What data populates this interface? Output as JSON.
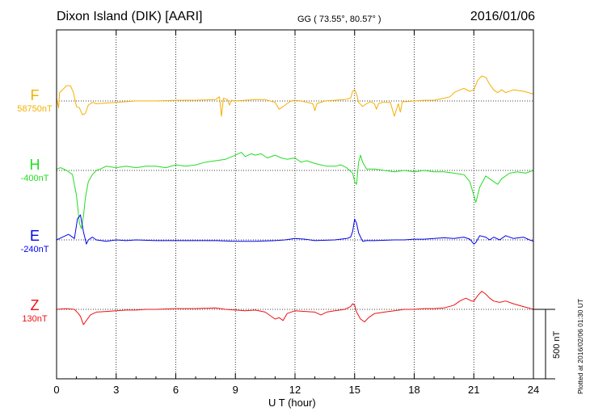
{
  "header": {
    "station": "Dixon Island (DIK)  [AARI]",
    "coords": "GG ( 73.55°,  80.57° )",
    "date": "2016/01/06"
  },
  "components": [
    {
      "letter": "F",
      "baseline": "58750nT",
      "color": "#f5b000"
    },
    {
      "letter": "H",
      "baseline": "-400nT",
      "color": "#22dd22"
    },
    {
      "letter": "E",
      "baseline": "-240nT",
      "color": "#0000ee"
    },
    {
      "letter": "Z",
      "baseline": "130nT",
      "color": "#ee1111"
    }
  ],
  "scale_bar": {
    "label": "500 nT",
    "value_nT": 500
  },
  "footer": {
    "plotted": "Plotted at 2016/02/06 01:30 UT"
  },
  "chart_data": {
    "type": "line",
    "title": "Dixon Island (DIK)  [AARI]",
    "xlabel": "U T (hour)",
    "ylabel": "",
    "xlim": [
      0,
      24
    ],
    "x_ticks": [
      0,
      3,
      6,
      9,
      12,
      15,
      18,
      21,
      24
    ],
    "grid": true,
    "units": "nT",
    "series": [
      {
        "name": "F",
        "baseline": 58750,
        "color": "#f5b000",
        "points": [
          [
            0,
            20
          ],
          [
            0.1,
            -50
          ],
          [
            0.15,
            60
          ],
          [
            0.3,
            80
          ],
          [
            0.5,
            110
          ],
          [
            0.7,
            110
          ],
          [
            0.85,
            60
          ],
          [
            1.0,
            -40
          ],
          [
            1.15,
            -50
          ],
          [
            1.3,
            -100
          ],
          [
            1.45,
            -90
          ],
          [
            1.6,
            -30
          ],
          [
            1.8,
            -10
          ],
          [
            2.0,
            -20
          ],
          [
            2.5,
            -15
          ],
          [
            3.0,
            -10
          ],
          [
            3.5,
            -5
          ],
          [
            4.0,
            0
          ],
          [
            5.0,
            0
          ],
          [
            6.0,
            5
          ],
          [
            7.0,
            5
          ],
          [
            8.0,
            10
          ],
          [
            8.2,
            30
          ],
          [
            8.3,
            -110
          ],
          [
            8.4,
            20
          ],
          [
            8.6,
            10
          ],
          [
            8.7,
            -30
          ],
          [
            8.8,
            5
          ],
          [
            9.0,
            0
          ],
          [
            9.5,
            5
          ],
          [
            10.0,
            10
          ],
          [
            10.5,
            10
          ],
          [
            11.0,
            -10
          ],
          [
            11.2,
            -60
          ],
          [
            11.4,
            -40
          ],
          [
            11.6,
            -20
          ],
          [
            11.8,
            0
          ],
          [
            12.0,
            5
          ],
          [
            12.3,
            0
          ],
          [
            12.6,
            -10
          ],
          [
            12.9,
            -20
          ],
          [
            13.0,
            -70
          ],
          [
            13.1,
            -20
          ],
          [
            13.5,
            0
          ],
          [
            14.0,
            5
          ],
          [
            14.5,
            10
          ],
          [
            14.8,
            20
          ],
          [
            14.9,
            70
          ],
          [
            15.0,
            80
          ],
          [
            15.1,
            50
          ],
          [
            15.2,
            -10
          ],
          [
            15.4,
            -40
          ],
          [
            15.6,
            -20
          ],
          [
            15.8,
            -5
          ],
          [
            16.0,
            -20
          ],
          [
            16.1,
            -60
          ],
          [
            16.2,
            -20
          ],
          [
            16.4,
            -10
          ],
          [
            16.8,
            -10
          ],
          [
            17.0,
            -110
          ],
          [
            17.2,
            -20
          ],
          [
            17.3,
            -80
          ],
          [
            17.4,
            -5
          ],
          [
            17.6,
            -5
          ],
          [
            18.0,
            0
          ],
          [
            18.5,
            5
          ],
          [
            19.0,
            5
          ],
          [
            19.5,
            20
          ],
          [
            19.8,
            30
          ],
          [
            20.0,
            60
          ],
          [
            20.3,
            80
          ],
          [
            20.5,
            90
          ],
          [
            20.8,
            70
          ],
          [
            21.0,
            80
          ],
          [
            21.2,
            150
          ],
          [
            21.4,
            180
          ],
          [
            21.6,
            170
          ],
          [
            21.8,
            120
          ],
          [
            22.0,
            80
          ],
          [
            22.2,
            60
          ],
          [
            22.4,
            80
          ],
          [
            22.6,
            60
          ],
          [
            23.0,
            80
          ],
          [
            23.5,
            70
          ],
          [
            24.0,
            50
          ]
        ]
      },
      {
        "name": "H",
        "baseline": -400,
        "color": "#22dd22",
        "points": [
          [
            0,
            10
          ],
          [
            0.2,
            20
          ],
          [
            0.5,
            0
          ],
          [
            0.8,
            -30
          ],
          [
            1.0,
            -180
          ],
          [
            1.15,
            -380
          ],
          [
            1.25,
            -420
          ],
          [
            1.35,
            -330
          ],
          [
            1.45,
            -200
          ],
          [
            1.6,
            -80
          ],
          [
            1.8,
            -30
          ],
          [
            2.0,
            0
          ],
          [
            2.2,
            10
          ],
          [
            2.5,
            30
          ],
          [
            3.0,
            20
          ],
          [
            3.5,
            30
          ],
          [
            4.0,
            20
          ],
          [
            4.5,
            30
          ],
          [
            5.0,
            30
          ],
          [
            5.5,
            20
          ],
          [
            6.0,
            40
          ],
          [
            6.5,
            30
          ],
          [
            7.0,
            40
          ],
          [
            7.5,
            60
          ],
          [
            8.0,
            70
          ],
          [
            8.5,
            80
          ],
          [
            9.0,
            110
          ],
          [
            9.3,
            130
          ],
          [
            9.5,
            100
          ],
          [
            9.8,
            120
          ],
          [
            10.0,
            110
          ],
          [
            10.3,
            120
          ],
          [
            10.6,
            90
          ],
          [
            11.0,
            110
          ],
          [
            11.3,
            90
          ],
          [
            11.6,
            80
          ],
          [
            12.0,
            90
          ],
          [
            12.3,
            60
          ],
          [
            12.6,
            70
          ],
          [
            13.0,
            50
          ],
          [
            13.3,
            40
          ],
          [
            13.6,
            30
          ],
          [
            14.0,
            30
          ],
          [
            14.3,
            40
          ],
          [
            14.6,
            20
          ],
          [
            14.9,
            -20
          ],
          [
            15.0,
            -80
          ],
          [
            15.1,
            -100
          ],
          [
            15.2,
            60
          ],
          [
            15.3,
            110
          ],
          [
            15.4,
            60
          ],
          [
            15.6,
            10
          ],
          [
            16.0,
            10
          ],
          [
            16.5,
            0
          ],
          [
            17.0,
            -10
          ],
          [
            17.5,
            0
          ],
          [
            18.0,
            -10
          ],
          [
            18.5,
            0
          ],
          [
            19.0,
            -10
          ],
          [
            19.5,
            -10
          ],
          [
            20.0,
            -20
          ],
          [
            20.5,
            -30
          ],
          [
            20.8,
            -80
          ],
          [
            21.0,
            -180
          ],
          [
            21.1,
            -230
          ],
          [
            21.3,
            -120
          ],
          [
            21.6,
            -40
          ],
          [
            21.8,
            -60
          ],
          [
            22.0,
            -80
          ],
          [
            22.2,
            -100
          ],
          [
            22.4,
            -60
          ],
          [
            22.8,
            -20
          ],
          [
            23.2,
            -10
          ],
          [
            23.6,
            -20
          ],
          [
            24.0,
            0
          ]
        ]
      },
      {
        "name": "E",
        "baseline": -240,
        "color": "#0000ee",
        "points": [
          [
            0,
            0
          ],
          [
            0.3,
            20
          ],
          [
            0.6,
            40
          ],
          [
            0.9,
            10
          ],
          [
            1.05,
            150
          ],
          [
            1.2,
            180
          ],
          [
            1.35,
            60
          ],
          [
            1.5,
            -30
          ],
          [
            1.6,
            0
          ],
          [
            1.8,
            20
          ],
          [
            2.0,
            0
          ],
          [
            2.5,
            -10
          ],
          [
            3.0,
            0
          ],
          [
            3.5,
            -5
          ],
          [
            4.0,
            0
          ],
          [
            5.0,
            -5
          ],
          [
            6.0,
            -5
          ],
          [
            7.0,
            -5
          ],
          [
            8.0,
            -5
          ],
          [
            9.0,
            -10
          ],
          [
            10.0,
            -10
          ],
          [
            11.0,
            -5
          ],
          [
            11.5,
            0
          ],
          [
            12.0,
            10
          ],
          [
            12.5,
            5
          ],
          [
            13.0,
            -5
          ],
          [
            14.0,
            0
          ],
          [
            14.6,
            10
          ],
          [
            14.8,
            20
          ],
          [
            14.9,
            60
          ],
          [
            15.0,
            150
          ],
          [
            15.1,
            120
          ],
          [
            15.2,
            50
          ],
          [
            15.4,
            -10
          ],
          [
            15.6,
            -5
          ],
          [
            16.0,
            -5
          ],
          [
            17.0,
            0
          ],
          [
            17.5,
            0
          ],
          [
            18.0,
            5
          ],
          [
            18.5,
            5
          ],
          [
            19.0,
            10
          ],
          [
            19.5,
            15
          ],
          [
            20.0,
            10
          ],
          [
            20.5,
            20
          ],
          [
            20.8,
            5
          ],
          [
            21.0,
            -30
          ],
          [
            21.1,
            -20
          ],
          [
            21.3,
            30
          ],
          [
            21.6,
            20
          ],
          [
            21.8,
            0
          ],
          [
            22.0,
            20
          ],
          [
            22.3,
            0
          ],
          [
            22.6,
            30
          ],
          [
            23.0,
            10
          ],
          [
            23.5,
            20
          ],
          [
            23.8,
            0
          ],
          [
            24.0,
            -10
          ]
        ]
      },
      {
        "name": "Z",
        "baseline": 130,
        "color": "#ee1111",
        "points": [
          [
            0,
            0
          ],
          [
            0.5,
            5
          ],
          [
            0.9,
            0
          ],
          [
            1.1,
            -30
          ],
          [
            1.2,
            -50
          ],
          [
            1.35,
            -110
          ],
          [
            1.5,
            -80
          ],
          [
            1.7,
            -40
          ],
          [
            2.0,
            -20
          ],
          [
            2.5,
            -15
          ],
          [
            3.0,
            -10
          ],
          [
            3.5,
            -5
          ],
          [
            4.0,
            -5
          ],
          [
            4.5,
            0
          ],
          [
            5.0,
            0
          ],
          [
            6.0,
            5
          ],
          [
            7.0,
            5
          ],
          [
            8.0,
            10
          ],
          [
            8.5,
            0
          ],
          [
            9.0,
            -5
          ],
          [
            9.5,
            -10
          ],
          [
            10.0,
            -5
          ],
          [
            10.5,
            -20
          ],
          [
            10.8,
            -50
          ],
          [
            11.0,
            -70
          ],
          [
            11.2,
            -60
          ],
          [
            11.4,
            -80
          ],
          [
            11.6,
            -30
          ],
          [
            12.0,
            -10
          ],
          [
            12.5,
            -15
          ],
          [
            13.0,
            -20
          ],
          [
            13.3,
            -40
          ],
          [
            13.6,
            -20
          ],
          [
            14.0,
            -10
          ],
          [
            14.5,
            0
          ],
          [
            14.8,
            20
          ],
          [
            14.9,
            40
          ],
          [
            15.0,
            30
          ],
          [
            15.1,
            -20
          ],
          [
            15.3,
            -70
          ],
          [
            15.5,
            -90
          ],
          [
            15.7,
            -60
          ],
          [
            16.0,
            -30
          ],
          [
            16.5,
            -20
          ],
          [
            17.0,
            -10
          ],
          [
            17.5,
            0
          ],
          [
            18.0,
            0
          ],
          [
            18.5,
            5
          ],
          [
            19.0,
            5
          ],
          [
            19.5,
            10
          ],
          [
            20.0,
            30
          ],
          [
            20.3,
            60
          ],
          [
            20.6,
            80
          ],
          [
            20.9,
            60
          ],
          [
            21.0,
            60
          ],
          [
            21.2,
            100
          ],
          [
            21.4,
            130
          ],
          [
            21.6,
            110
          ],
          [
            21.8,
            80
          ],
          [
            22.0,
            60
          ],
          [
            22.3,
            50
          ],
          [
            22.6,
            60
          ],
          [
            23.0,
            40
          ],
          [
            23.5,
            20
          ],
          [
            24.0,
            0
          ]
        ]
      }
    ]
  }
}
